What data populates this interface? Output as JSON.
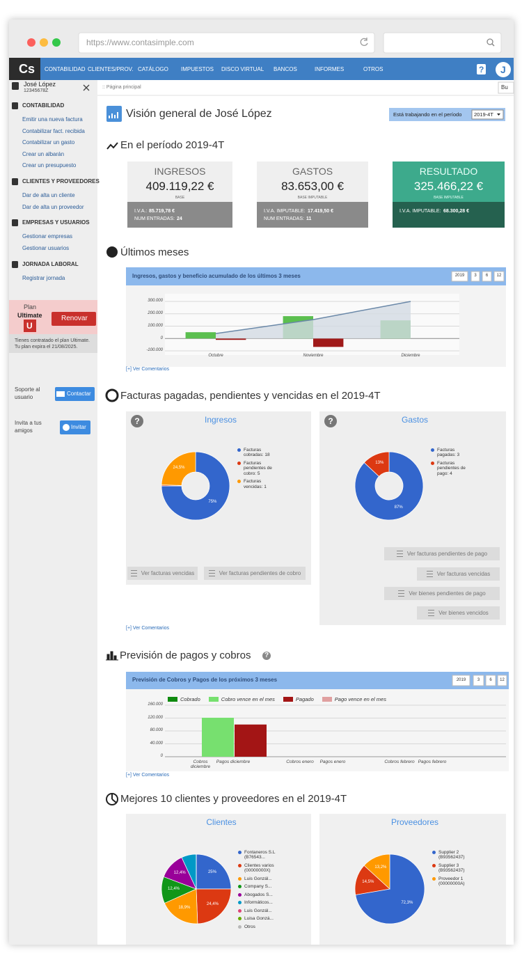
{
  "browser": {
    "url": "https://www.contasimple.com"
  },
  "nav": {
    "logo": "Cs",
    "items": [
      "CONTABILIDAD",
      "CLIENTES/PROV.",
      "CATÁLOGO",
      "IMPUESTOS",
      "DISCO VIRTUAL",
      "BANCOS",
      "INFORMES",
      "OTROS"
    ],
    "help": "?",
    "avatar": "J"
  },
  "sidebar": {
    "user": {
      "name": "José López",
      "id": "12345678Z"
    },
    "sections": [
      {
        "title": "CONTABILIDAD",
        "links": [
          "Emitir una nueva factura",
          "Contabilizar fact. recibida",
          "Contabilizar un gasto",
          "Crear un albarán",
          "Crear un presupuesto"
        ]
      },
      {
        "title": "CLIENTES Y PROVEEDORES",
        "links": [
          "Dar de alta un cliente",
          "Dar de alta un proveedor"
        ]
      },
      {
        "title": "EMPRESAS Y USUARIOS",
        "links": [
          "Gestionar empresas",
          "Gestionar usuarios"
        ]
      },
      {
        "title": "JORNADA LABORAL",
        "links": [
          "Registrar jornada"
        ]
      }
    ],
    "plan": {
      "label": "Plan",
      "name": "Ultimate",
      "badge": "U",
      "button": "Renovar",
      "note": [
        "Tienes contratado el plan Ultimate.",
        "Tu plan expira el 21/08/2025."
      ]
    },
    "support": {
      "text": [
        "Soporte al",
        "usuario"
      ],
      "button": "Contactar"
    },
    "invite": {
      "text": [
        "Invita a tus",
        "amigos"
      ],
      "button": "Invitar"
    }
  },
  "breadcrumb": ":: Página principal",
  "search_button": "Bu",
  "header": {
    "title": "Visión general de José López",
    "period_label": "Está trabajando en el período",
    "period": "2019-4T"
  },
  "summary": {
    "title": "En el período 2019-4T",
    "cards": [
      {
        "title": "INGRESOS",
        "amount": "409.119,22 €",
        "base": "BASE",
        "details": [
          [
            "I.V.A.:",
            "85.719,78 €"
          ],
          [
            "NUM ENTRADAS:",
            "24"
          ]
        ],
        "color": "#efefef",
        "footer_color": "#8a8a8a",
        "text_color": "#666666",
        "amount_color": "#222222"
      },
      {
        "title": "GASTOS",
        "amount": "83.653,00 €",
        "base": "BASE IMPUTABLE",
        "details": [
          [
            "I.V.A. IMPUTABLE:",
            "17.419,50 €"
          ],
          [
            "NUM ENTRADAS:",
            "11"
          ]
        ],
        "color": "#efefef",
        "footer_color": "#8a8a8a",
        "text_color": "#666666",
        "amount_color": "#222222"
      },
      {
        "title": "RESULTADO",
        "amount": "325.466,22 €",
        "base": "BASE IMPUTABLE",
        "details": [
          [
            "I.V.A. IMPUTABLE:",
            "68.300,28 €"
          ]
        ],
        "color": "#3daa8c",
        "footer_color": "#25614f",
        "text_color": "#e8fff8",
        "amount_color": "#ffffff"
      }
    ]
  },
  "recent": {
    "title": "Últimos meses",
    "comments": "[+] Ver Comentarios",
    "chart": {
      "type": "bar-line",
      "title": "Ingresos, gastos y beneficio acumulado de los últimos 3 meses",
      "periods": [
        "2019",
        "3",
        "6",
        "12"
      ],
      "categories": [
        "Octubre",
        "Noviembre",
        "Diciembre"
      ],
      "ylim": [
        -100000,
        300000
      ],
      "yticks": [
        {
          "value": -100000,
          "label": "-100.000"
        },
        0,
        {
          "value": 100000,
          "label": "100.000"
        },
        {
          "value": 200000,
          "label": "200.000"
        },
        {
          "value": 300000,
          "label": "300.000"
        }
      ],
      "grid": true,
      "series": [
        {
          "kind": "bar",
          "color": "#5bbf4f",
          "values": [
            51000,
            181000,
            147000
          ]
        },
        {
          "kind": "bar",
          "color": "#a01a1a",
          "values": [
            -11000,
            -68000,
            0
          ]
        },
        {
          "kind": "area",
          "color": "#6a88a8",
          "fill": "#d3dbe4",
          "values": [
            40000,
            153000,
            300000
          ]
        }
      ]
    }
  },
  "invoices": {
    "title": "Facturas pagadas, pendientes y vencidas en el 2019-4T",
    "comments": "[+] Ver Comentarios",
    "charts": [
      {
        "type": "donut",
        "title": "Ingresos",
        "help": "?",
        "labels": [
          "Facturas cobradas: 18",
          "Facturas pendientes de cobro: 5",
          "Facturas vencidas: 1"
        ],
        "colors": [
          "#3366cc",
          "#dc3912",
          "#ff9900"
        ],
        "values": [
          75,
          0.5,
          24.5
        ],
        "value_labels": [
          "75%",
          null,
          "24,5%"
        ],
        "buttons": [
          "Ver facturas vencidas",
          "Ver facturas pendientes de cobro"
        ]
      },
      {
        "type": "donut",
        "title": "Gastos",
        "help": "?",
        "labels": [
          "Facturas pagadas: 3",
          "Facturas pendientes de pago: 4"
        ],
        "colors": [
          "#3366cc",
          "#dc3912"
        ],
        "values": [
          87,
          13
        ],
        "value_labels": [
          "87%",
          "13%"
        ],
        "buttons": [
          "Ver facturas pendientes de pago",
          "Ver facturas vencidas",
          "Ver bienes pendientes de pago",
          "Ver bienes vencidos"
        ]
      }
    ]
  },
  "forecast": {
    "title": "Previsión de pagos y cobros",
    "help": "?",
    "comments": "[+] Ver Comentarios",
    "chart": {
      "type": "stacked-bar",
      "title": "Previsión de Cobros y Pagos de los próximos 3 meses",
      "periods": [
        "2019",
        "3",
        "6",
        "12"
      ],
      "categories": [
        "Cobros diciembre",
        "Pagos diciembre",
        "Cobros enero",
        "Pagos enero",
        "Cobros febrero",
        "Pagos febrero"
      ],
      "ylim": [
        0,
        160000
      ],
      "yticks": [
        0,
        {
          "value": 40000,
          "label": "40.000"
        },
        {
          "value": 80000,
          "label": "80.000"
        },
        {
          "value": 120000,
          "label": "120.000"
        },
        {
          "value": 160000,
          "label": "160.000"
        }
      ],
      "grid": true,
      "series": [
        {
          "name": "Cobrado",
          "color": "#0f8a0f",
          "values": [
            0,
            0,
            0,
            0,
            0,
            0
          ]
        },
        {
          "name": "Cobro vence en el mes",
          "color": "#77e06f",
          "values": [
            121000,
            0,
            0,
            0,
            0,
            0
          ]
        },
        {
          "name": "Pagado",
          "color": "#a31515",
          "values": [
            0,
            100000,
            0,
            0,
            0,
            0
          ]
        },
        {
          "name": "Pago vence en el mes",
          "color": "#e0a0a0",
          "values": [
            0,
            0,
            0,
            0,
            0,
            0
          ]
        }
      ]
    }
  },
  "top": {
    "title": "Mejores 10 clientes y proveedores en el 2019-4T",
    "charts": [
      {
        "type": "pie",
        "title": "Clientes",
        "labels": [
          "Fontaneros S.L (B76543...",
          "Clientes varios (00000000X)",
          "Luis Gonzál...",
          "Company S...",
          "Abogados S...",
          "Informáticos...",
          "Luis Gonzál...",
          "Luisa Gonzá...",
          "Otros"
        ],
        "colors": [
          "#3366cc",
          "#dc3912",
          "#ff9900",
          "#109618",
          "#990099",
          "#0099c6",
          "#dd4477",
          "#66aa00",
          "#b8b8b8"
        ],
        "values": [
          25,
          24.4,
          18.9,
          12.4,
          12.4,
          6.9,
          0,
          0,
          0
        ],
        "value_labels": [
          "25%",
          "24,4%",
          "18,9%",
          "12,4%",
          "12,4%",
          null,
          null,
          null,
          null
        ]
      },
      {
        "type": "pie",
        "title": "Proveedores",
        "labels": [
          "Supplier 2 (B93562437)",
          "Supplier 3 (B93562437)",
          "Proveedor 1 (00000000A)"
        ],
        "colors": [
          "#3366cc",
          "#dc3912",
          "#ff9900"
        ],
        "values": [
          72.3,
          14.5,
          13.2
        ],
        "value_labels": [
          "72,3%",
          "14,5%",
          "13,2%"
        ]
      }
    ]
  }
}
